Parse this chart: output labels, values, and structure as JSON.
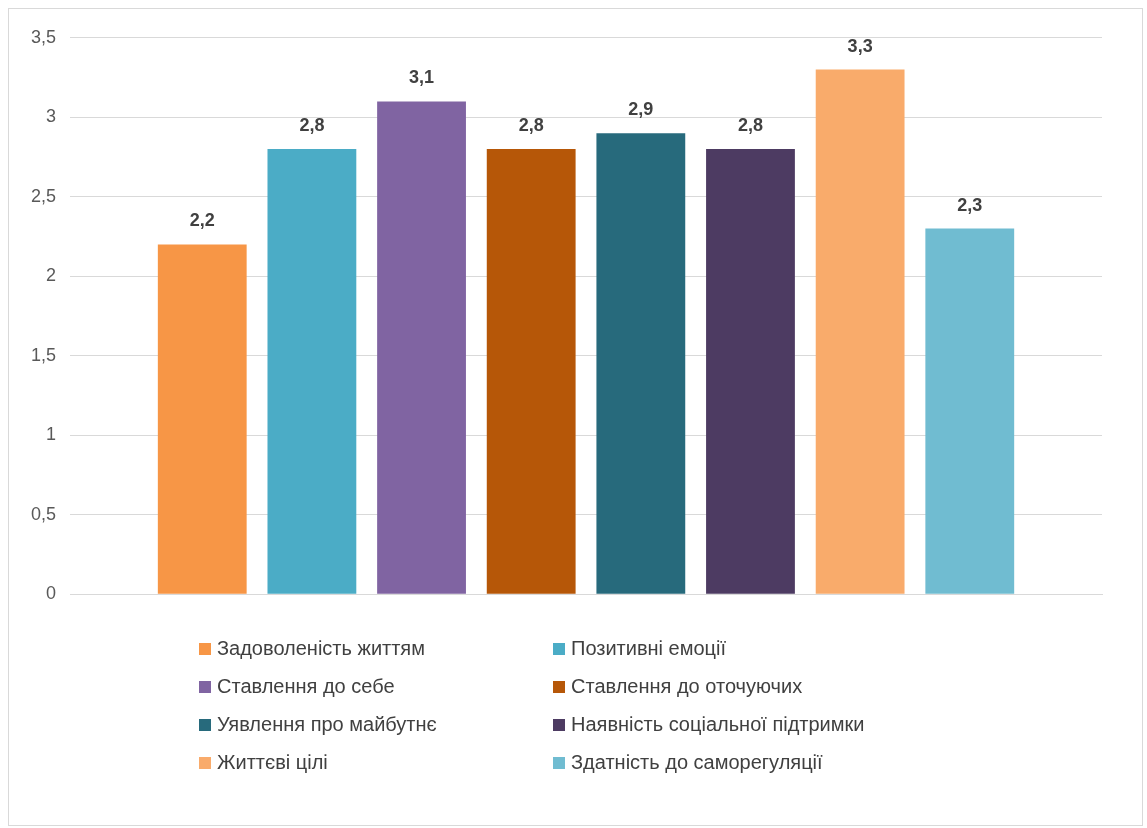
{
  "chart_data": {
    "type": "bar",
    "categories": [
      null
    ],
    "series": [
      {
        "name": "Задоволеність життям",
        "color": "#f79646",
        "values": [
          2.2
        ],
        "value_labels": [
          "2,2"
        ]
      },
      {
        "name": "Позитивні емоції",
        "color": "#4bacc6",
        "values": [
          2.8
        ],
        "value_labels": [
          "2,8"
        ]
      },
      {
        "name": "Ставлення до себе",
        "color": "#8064a2",
        "values": [
          3.1
        ],
        "value_labels": [
          "3,1"
        ]
      },
      {
        "name": "Ставлення до оточуючих",
        "color": "#b65708",
        "values": [
          2.8
        ],
        "value_labels": [
          "2,8"
        ]
      },
      {
        "name": "Уявлення про майбутнє",
        "color": "#276a7c",
        "values": [
          2.9
        ],
        "value_labels": [
          "2,9"
        ]
      },
      {
        "name": "Наявність соціальної підтримки",
        "color": "#4d3b62",
        "values": [
          2.8
        ],
        "value_labels": [
          "2,8"
        ]
      },
      {
        "name": "Життєві цілі",
        "color": "#f9ab6b",
        "values": [
          3.3
        ],
        "value_labels": [
          "3,3"
        ]
      },
      {
        "name": "Здатність до саморегуляції",
        "color": "#70bcd1",
        "values": [
          2.3
        ],
        "value_labels": [
          "2,3"
        ]
      }
    ],
    "ylim": [
      0,
      3.5
    ],
    "yticks": [
      0,
      {
        "value": 0.5,
        "label": "0,5"
      },
      1,
      {
        "value": 1.5,
        "label": "1,5"
      },
      2,
      {
        "value": 2.5,
        "label": "2,5"
      },
      3,
      {
        "value": 3.5,
        "label": "3,5"
      }
    ],
    "grid": "y",
    "legend": "bottom",
    "tick_labels": "y"
  }
}
